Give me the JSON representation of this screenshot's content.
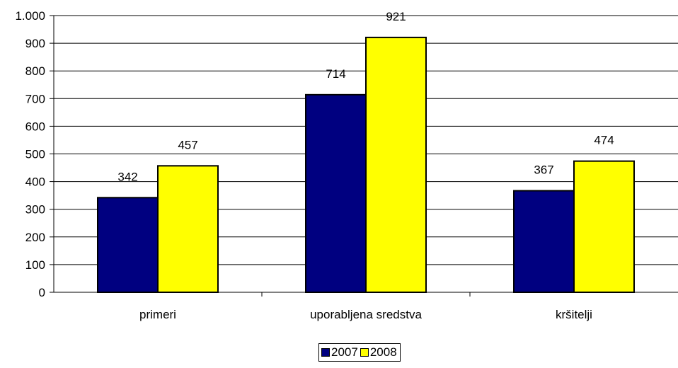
{
  "chart_data": {
    "type": "bar",
    "categories": [
      "primeri",
      "uporabljena sredstva",
      "kršitelji"
    ],
    "series": [
      {
        "name": "2007",
        "values": [
          342,
          714,
          367
        ],
        "color": "#000080",
        "labels": [
          "342",
          "714",
          "367"
        ]
      },
      {
        "name": "2008",
        "values": [
          457,
          921,
          474
        ],
        "color": "#FFFF00",
        "labels": [
          "457",
          "921",
          "474"
        ]
      }
    ],
    "y_ticks": [
      0,
      100,
      200,
      300,
      400,
      500,
      600,
      700,
      800,
      900,
      1000
    ],
    "y_tick_labels": [
      "0",
      "100",
      "200",
      "300",
      "400",
      "500",
      "600",
      "700",
      "800",
      "900",
      "1.000"
    ],
    "ylim": [
      0,
      1000
    ],
    "grid": true,
    "legend_position": "bottom-center"
  }
}
